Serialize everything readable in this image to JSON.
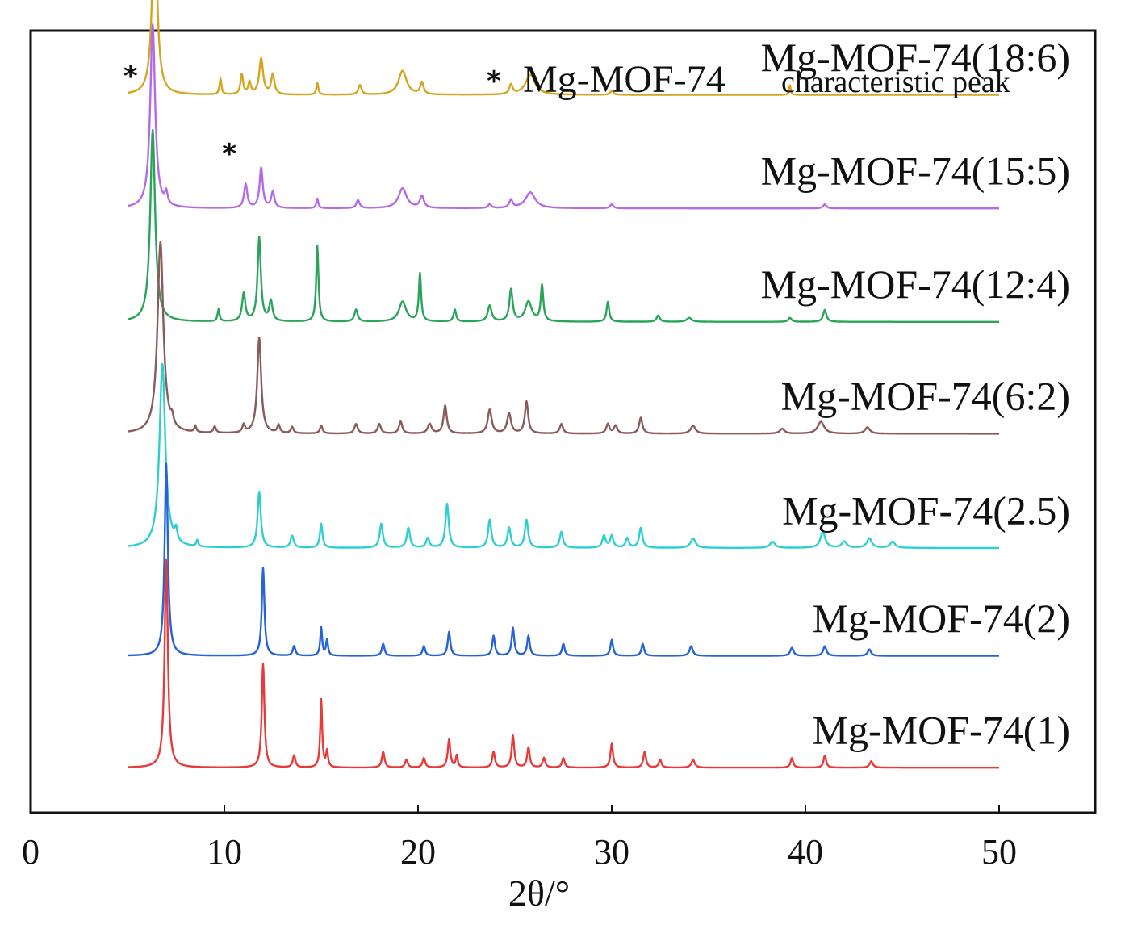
{
  "chart_data": {
    "type": "line",
    "title": "",
    "xlabel": "2θ/°",
    "ylabel": "",
    "xlim": [
      0,
      55
    ],
    "xticks": [
      0,
      10,
      20,
      30,
      40,
      50
    ],
    "x_range": [
      5,
      50
    ],
    "legend": {
      "marker": "*",
      "text_main": "Mg-MOF-74",
      "text_sub": "characteristic peak",
      "placement": "top-right"
    },
    "characteristic_peaks": [
      6.7,
      11.8
    ],
    "series": [
      {
        "name": "Mg-MOF-74(18:6)",
        "color": "#d4a520",
        "baseline": 8.62,
        "peaks": [
          [
            6.4,
            2.3,
            0.15
          ],
          [
            9.8,
            0.2,
            0.06
          ],
          [
            10.9,
            0.25,
            0.08
          ],
          [
            11.3,
            0.15,
            0.08
          ],
          [
            11.9,
            0.45,
            0.12
          ],
          [
            12.5,
            0.25,
            0.1
          ],
          [
            14.8,
            0.15,
            0.06
          ],
          [
            17.0,
            0.12,
            0.1
          ],
          [
            19.2,
            0.3,
            0.25
          ],
          [
            20.2,
            0.15,
            0.1
          ],
          [
            24.8,
            0.12,
            0.1
          ],
          [
            25.8,
            0.25,
            0.3
          ],
          [
            30.0,
            0.05,
            0.1
          ],
          [
            39.2,
            0.12,
            0.05
          ]
        ]
      },
      {
        "name": "Mg-MOF-74(15:5)",
        "color": "#b36ae8",
        "baseline": 7.2,
        "peaks": [
          [
            6.3,
            2.3,
            0.15
          ],
          [
            7.0,
            0.15,
            0.08
          ],
          [
            11.1,
            0.3,
            0.1
          ],
          [
            11.9,
            0.5,
            0.1
          ],
          [
            12.5,
            0.2,
            0.1
          ],
          [
            14.8,
            0.12,
            0.06
          ],
          [
            16.9,
            0.1,
            0.1
          ],
          [
            19.2,
            0.25,
            0.25
          ],
          [
            20.2,
            0.15,
            0.12
          ],
          [
            23.7,
            0.05,
            0.1
          ],
          [
            24.8,
            0.1,
            0.1
          ],
          [
            25.8,
            0.2,
            0.3
          ],
          [
            30.0,
            0.05,
            0.1
          ],
          [
            41.0,
            0.05,
            0.1
          ]
        ]
      },
      {
        "name": "Mg-MOF-74(12:4)",
        "color": "#2aa45a",
        "baseline": 5.78,
        "peaks": [
          [
            6.3,
            2.4,
            0.15
          ],
          [
            9.7,
            0.15,
            0.06
          ],
          [
            11.0,
            0.35,
            0.1
          ],
          [
            11.8,
            1.05,
            0.1
          ],
          [
            12.4,
            0.25,
            0.1
          ],
          [
            14.8,
            0.95,
            0.07
          ],
          [
            16.8,
            0.15,
            0.1
          ],
          [
            19.2,
            0.25,
            0.22
          ],
          [
            20.1,
            0.6,
            0.07
          ],
          [
            21.9,
            0.15,
            0.08
          ],
          [
            23.7,
            0.2,
            0.12
          ],
          [
            24.8,
            0.4,
            0.1
          ],
          [
            25.7,
            0.25,
            0.2
          ],
          [
            26.4,
            0.45,
            0.08
          ],
          [
            29.8,
            0.25,
            0.08
          ],
          [
            32.4,
            0.08,
            0.1
          ],
          [
            34.0,
            0.05,
            0.15
          ],
          [
            39.2,
            0.05,
            0.1
          ],
          [
            41.0,
            0.15,
            0.1
          ]
        ]
      },
      {
        "name": "Mg-MOF-74(6:2)",
        "color": "#8b5a5a",
        "baseline": 4.38,
        "peaks": [
          [
            6.7,
            2.4,
            0.18
          ],
          [
            7.3,
            0.1,
            0.08
          ],
          [
            8.5,
            0.08,
            0.06
          ],
          [
            9.5,
            0.08,
            0.08
          ],
          [
            11.0,
            0.1,
            0.08
          ],
          [
            11.8,
            1.2,
            0.12
          ],
          [
            12.8,
            0.1,
            0.08
          ],
          [
            13.5,
            0.08,
            0.08
          ],
          [
            15.0,
            0.1,
            0.08
          ],
          [
            16.8,
            0.12,
            0.1
          ],
          [
            18.0,
            0.12,
            0.1
          ],
          [
            19.1,
            0.15,
            0.1
          ],
          [
            20.6,
            0.12,
            0.12
          ],
          [
            21.4,
            0.35,
            0.1
          ],
          [
            23.7,
            0.3,
            0.12
          ],
          [
            24.7,
            0.25,
            0.12
          ],
          [
            25.6,
            0.4,
            0.1
          ],
          [
            27.4,
            0.12,
            0.1
          ],
          [
            29.8,
            0.12,
            0.1
          ],
          [
            30.2,
            0.1,
            0.1
          ],
          [
            31.5,
            0.2,
            0.1
          ],
          [
            34.2,
            0.1,
            0.15
          ],
          [
            38.8,
            0.06,
            0.15
          ],
          [
            40.8,
            0.15,
            0.2
          ],
          [
            43.2,
            0.08,
            0.15
          ]
        ]
      },
      {
        "name": "Mg-MOF-74(2.5)",
        "color": "#2ed0cf",
        "baseline": 2.95,
        "peaks": [
          [
            6.8,
            2.3,
            0.18
          ],
          [
            7.5,
            0.15,
            0.08
          ],
          [
            8.6,
            0.08,
            0.06
          ],
          [
            11.8,
            0.7,
            0.1
          ],
          [
            13.5,
            0.15,
            0.1
          ],
          [
            15.0,
            0.3,
            0.08
          ],
          [
            18.1,
            0.3,
            0.1
          ],
          [
            19.5,
            0.25,
            0.1
          ],
          [
            20.5,
            0.12,
            0.1
          ],
          [
            21.5,
            0.55,
            0.1
          ],
          [
            23.7,
            0.35,
            0.1
          ],
          [
            24.7,
            0.25,
            0.1
          ],
          [
            25.6,
            0.35,
            0.1
          ],
          [
            27.4,
            0.2,
            0.1
          ],
          [
            29.6,
            0.15,
            0.1
          ],
          [
            30.0,
            0.15,
            0.1
          ],
          [
            30.8,
            0.12,
            0.1
          ],
          [
            31.5,
            0.25,
            0.1
          ],
          [
            34.2,
            0.12,
            0.15
          ],
          [
            38.3,
            0.08,
            0.15
          ],
          [
            40.9,
            0.2,
            0.15
          ],
          [
            42.0,
            0.08,
            0.15
          ],
          [
            43.3,
            0.12,
            0.15
          ],
          [
            44.5,
            0.08,
            0.15
          ]
        ]
      },
      {
        "name": "Mg-MOF-74(2)",
        "color": "#2563d6",
        "baseline": 1.6,
        "peaks": [
          [
            7.0,
            2.4,
            0.1
          ],
          [
            12.0,
            1.1,
            0.08
          ],
          [
            13.6,
            0.12,
            0.08
          ],
          [
            15.0,
            0.35,
            0.06
          ],
          [
            15.3,
            0.2,
            0.06
          ],
          [
            18.2,
            0.15,
            0.08
          ],
          [
            20.3,
            0.12,
            0.08
          ],
          [
            21.6,
            0.3,
            0.08
          ],
          [
            23.9,
            0.25,
            0.08
          ],
          [
            24.9,
            0.35,
            0.08
          ],
          [
            25.7,
            0.25,
            0.08
          ],
          [
            27.5,
            0.15,
            0.08
          ],
          [
            30.0,
            0.2,
            0.08
          ],
          [
            31.6,
            0.15,
            0.08
          ],
          [
            34.1,
            0.12,
            0.1
          ],
          [
            39.3,
            0.1,
            0.1
          ],
          [
            41.0,
            0.12,
            0.1
          ],
          [
            43.3,
            0.08,
            0.1
          ]
        ]
      },
      {
        "name": "Mg-MOF-74(1)",
        "color": "#e83a3a",
        "baseline": 0.2,
        "peaks": [
          [
            7.0,
            2.6,
            0.1
          ],
          [
            12.0,
            1.3,
            0.08
          ],
          [
            13.6,
            0.15,
            0.08
          ],
          [
            15.0,
            0.85,
            0.06
          ],
          [
            15.3,
            0.2,
            0.06
          ],
          [
            18.2,
            0.2,
            0.08
          ],
          [
            19.4,
            0.1,
            0.08
          ],
          [
            20.3,
            0.12,
            0.08
          ],
          [
            21.6,
            0.35,
            0.08
          ],
          [
            22.0,
            0.15,
            0.06
          ],
          [
            23.9,
            0.2,
            0.08
          ],
          [
            24.9,
            0.4,
            0.08
          ],
          [
            25.7,
            0.25,
            0.08
          ],
          [
            26.5,
            0.12,
            0.08
          ],
          [
            27.5,
            0.12,
            0.08
          ],
          [
            30.0,
            0.3,
            0.08
          ],
          [
            31.7,
            0.2,
            0.08
          ],
          [
            32.5,
            0.1,
            0.08
          ],
          [
            34.2,
            0.1,
            0.1
          ],
          [
            39.3,
            0.12,
            0.08
          ],
          [
            41.0,
            0.15,
            0.08
          ],
          [
            43.4,
            0.08,
            0.1
          ]
        ]
      }
    ]
  }
}
